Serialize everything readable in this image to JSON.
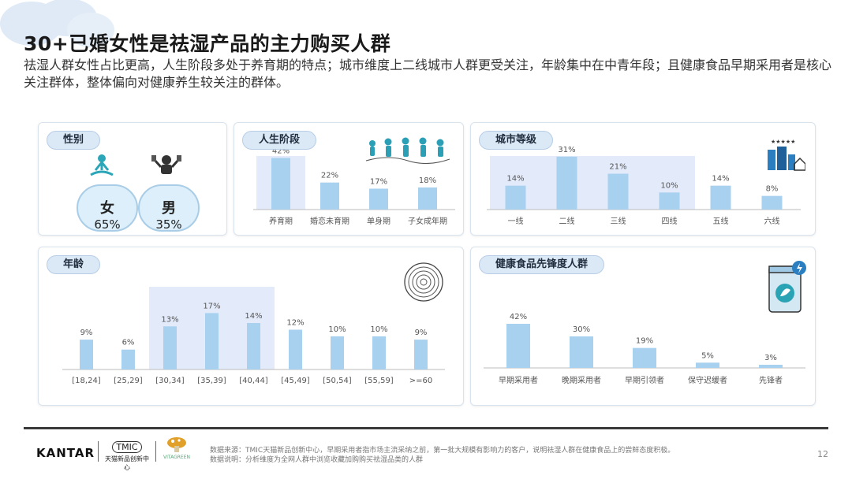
{
  "header": {
    "title": "30+已婚女性是祛湿产品的主力购买人群",
    "subtitle": "祛湿人群女性占比更高，人生阶段多处于养育期的特点；城市维度上二线城市人群更受关注，年龄集中在中青年段；且健康食品早期采用者是核心关注群体，整体偏向对健康养生较关注的群体。"
  },
  "gender": {
    "tag": "性别",
    "female_label": "女",
    "female_value": "65%",
    "male_label": "男",
    "male_value": "35%"
  },
  "colors": {
    "bar": "#a8d0ef",
    "highlight": "#e3ebfb",
    "tag_bg": "#dbe9f7",
    "axis": "#bbbbbb"
  },
  "chart_data": [
    {
      "id": "life",
      "tag": "人生阶段",
      "type": "bar",
      "categories": [
        "养育期",
        "婚恋未育期",
        "单身期",
        "子女成年期"
      ],
      "values": [
        42,
        22,
        17,
        18
      ],
      "unit": "%",
      "highlight": [
        0
      ]
    },
    {
      "id": "city",
      "tag": "城市等级",
      "type": "bar",
      "categories": [
        "一线",
        "二线",
        "三线",
        "四线",
        "五线",
        "六线"
      ],
      "values": [
        14,
        31,
        21,
        10,
        14,
        8
      ],
      "unit": "%",
      "highlight": [
        0,
        1,
        2,
        3
      ]
    },
    {
      "id": "age",
      "tag": "年龄",
      "type": "bar",
      "categories": [
        "[18,24]",
        "[25,29]",
        "[30,34]",
        "[35,39]",
        "[40,44]",
        "[45,49]",
        "[50,54]",
        "[55,59]",
        ">=60"
      ],
      "values": [
        9,
        6,
        13,
        17,
        14,
        12,
        10,
        10,
        9
      ],
      "unit": "%",
      "highlight": [
        2,
        3,
        4
      ]
    },
    {
      "id": "pioneer",
      "tag": "健康食品先锋度人群",
      "type": "bar",
      "categories": [
        "早期采用者",
        "晚期采用者",
        "早期引领者",
        "保守迟缓者",
        "先锋者"
      ],
      "values": [
        42,
        30,
        19,
        5,
        3
      ],
      "unit": "%",
      "highlight": []
    }
  ],
  "footer": {
    "kantar": "KANTAR",
    "tmic_mark": "TMIC",
    "tmic_name": "天猫新品创新中心",
    "vita_name": "VITAGREEN",
    "source_line1": "数据来源：TMIC天猫新品创新中心，早期采用者指市场主流采纳之前，第一批大规模有影响力的客户，说明祛湿人群在健康食品上的尝鲜态度积极。",
    "source_line2": "数据说明：分析维度为全网人群中浏览收藏加购购买祛湿品类的人群",
    "page": "12"
  }
}
